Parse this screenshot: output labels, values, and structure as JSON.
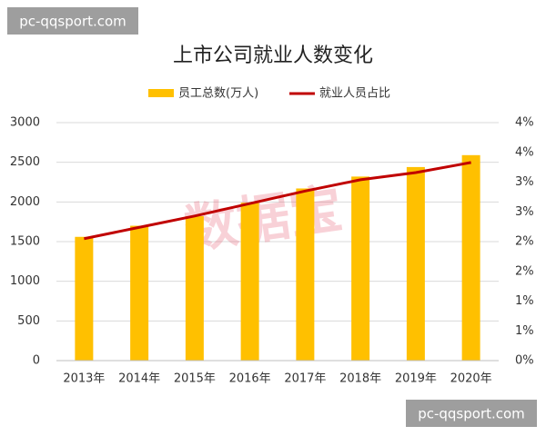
{
  "chart_data": {
    "type": "combo",
    "title": "上市公司就业人数变化",
    "categories": [
      "2013年",
      "2014年",
      "2015年",
      "2016年",
      "2017年",
      "2018年",
      "2019年",
      "2020年"
    ],
    "series": [
      {
        "name": "员工总数(万人)",
        "type": "bar",
        "color": "#ffc000",
        "values": [
          1560,
          1700,
          1820,
          1990,
          2170,
          2320,
          2440,
          2590
        ]
      },
      {
        "name": "就业人员占比",
        "type": "line",
        "color": "#c00000",
        "axis": "y2",
        "values": [
          2.05,
          2.24,
          2.43,
          2.64,
          2.85,
          3.04,
          3.16,
          3.33
        ]
      }
    ],
    "ylim": [
      0,
      3000
    ],
    "yticks": [
      0,
      500,
      1000,
      1500,
      2000,
      2500,
      3000
    ],
    "y2lim": [
      0,
      4
    ],
    "y2ticks": [
      {
        "value": 0,
        "label": "0%"
      },
      {
        "value": 0.5,
        "label": "1%"
      },
      {
        "value": 1,
        "label": "1%"
      },
      {
        "value": 1.5,
        "label": "2%"
      },
      {
        "value": 2,
        "label": "2%"
      },
      {
        "value": 2.5,
        "label": "3%"
      },
      {
        "value": 3,
        "label": "3%"
      },
      {
        "value": 3.5,
        "label": "4%"
      },
      {
        "value": 4,
        "label": "4%"
      }
    ],
    "grid": true,
    "legend": "top",
    "annotations": [
      "pc-qqsport.com",
      "数据宝",
      "pc-qqsport.com"
    ]
  }
}
